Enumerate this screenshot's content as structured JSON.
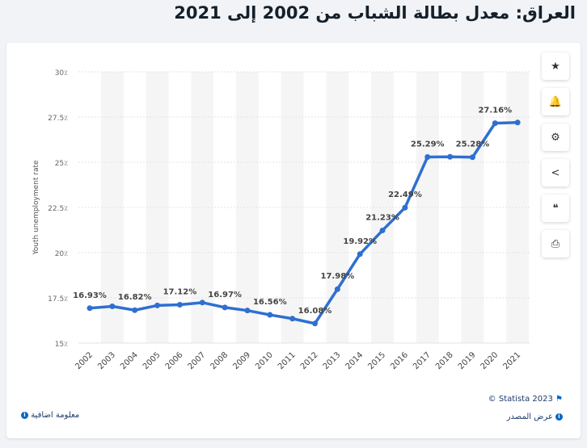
{
  "title": "العراق: معدل بطالة الشباب من 2002 إلى 2021",
  "footer": {
    "copyright": "© Statista 2023",
    "source_link": "عرض المصدر",
    "additional_info": "معلومة اضافية"
  },
  "toolbar": [
    {
      "icon": "star-icon",
      "glyph": "★"
    },
    {
      "icon": "bell-icon",
      "glyph": "🔔"
    },
    {
      "icon": "gear-icon",
      "glyph": "⚙"
    },
    {
      "icon": "share-icon",
      "glyph": "<"
    },
    {
      "icon": "quote-icon",
      "glyph": "❝"
    },
    {
      "icon": "print-icon",
      "glyph": "⎙"
    }
  ],
  "chart_data": {
    "type": "line",
    "ylabel": "Youth unemployment rate",
    "xlabel": "",
    "ylim": [
      15,
      30
    ],
    "yticks": [
      "15٪",
      "17.5٪",
      "20٪",
      "22.5٪",
      "25٪",
      "27.5٪",
      "30٪"
    ],
    "ytick_values": [
      15,
      17.5,
      20,
      22.5,
      25,
      27.5,
      30
    ],
    "categories": [
      "2002",
      "2003",
      "2004",
      "2005",
      "2006",
      "2007",
      "2008",
      "2009",
      "2010",
      "2011",
      "2012",
      "2013",
      "2014",
      "2015",
      "2016",
      "2017",
      "2018",
      "2019",
      "2020",
      "2021"
    ],
    "values": [
      16.93,
      17.03,
      16.82,
      17.08,
      17.12,
      17.24,
      16.97,
      16.8,
      16.56,
      16.35,
      16.08,
      17.98,
      19.92,
      21.23,
      22.49,
      25.29,
      25.3,
      25.28,
      27.16,
      27.2
    ],
    "labels": [
      "16.93%",
      "",
      "16.82%",
      "",
      "17.12%",
      "",
      "16.97%",
      "",
      "16.56%",
      "",
      "16.08%",
      "17.98%",
      "19.92%",
      "21.23%",
      "22.49%",
      "25.29%",
      "",
      "25.28%",
      "27.16%",
      ""
    ],
    "color": "#2f6fd0",
    "grid": true
  }
}
